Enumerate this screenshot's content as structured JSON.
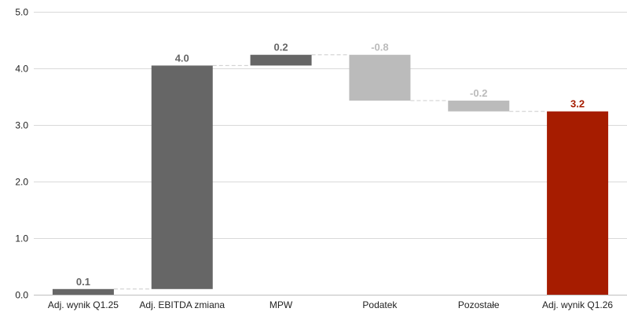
{
  "chart_data": {
    "type": "bar",
    "subtype": "waterfall",
    "title": "",
    "xlabel": "",
    "ylabel": "",
    "ylim": [
      0,
      5
    ],
    "yticks": [
      0,
      1,
      2,
      3,
      4,
      5
    ],
    "ytick_labels": [
      "0.0",
      "1.0",
      "2.0",
      "3.0",
      "4.0",
      "5.0"
    ],
    "grid": true,
    "legend": "none",
    "categories": [
      "Adj. wynik Q1.25",
      "Adj. EBITDA zmiana",
      "MPW",
      "Podatek",
      "Pozostałe",
      "Adj. wynik Q1.26"
    ],
    "values": [
      0.1,
      4.0,
      0.2,
      -0.8,
      -0.2,
      3.2
    ],
    "start": [
      0,
      0.1,
      4.05,
      4.24,
      3.43,
      0
    ],
    "end": [
      0.1,
      4.05,
      4.24,
      3.43,
      3.24,
      3.24
    ],
    "value_labels": [
      "0.1",
      "4.0",
      "0.2",
      "-0.8",
      "-0.2",
      "3.2"
    ],
    "colors": {
      "increase": "#666666",
      "decrease": "#bbbbbb",
      "total": "#a61c00",
      "label_increase": "#666666",
      "label_decrease": "#bbbbbb",
      "label_total": "#a61c00",
      "grid": "#d9d9d9",
      "connector": "#cccccc"
    },
    "bar_kinds": [
      "increase",
      "increase",
      "increase",
      "decrease",
      "decrease",
      "total"
    ]
  }
}
